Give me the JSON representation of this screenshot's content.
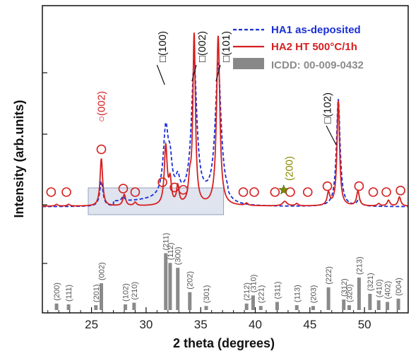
{
  "chart_data": {
    "type": "line",
    "xlabel": "2 theta (degrees)",
    "ylabel": "Intensity (arb.units)",
    "xlim": [
      20.5,
      54
    ],
    "x_ticks": [
      "25",
      "30",
      "35",
      "40",
      "45",
      "50"
    ],
    "x_tick_values": [
      25,
      30,
      35,
      40,
      45,
      50
    ],
    "grid": false,
    "legend_position": "top-right",
    "legend": [
      {
        "label": "HA1 as-deposited",
        "color": "#1a2fd6",
        "style": "dashed"
      },
      {
        "label": "HA2 HT 500°C/1h",
        "color": "#d62020",
        "style": "solid"
      },
      {
        "label": "ICDD: 00-009-0432",
        "color": "#888888",
        "style": "bar"
      }
    ],
    "series": [
      {
        "name": "HA1 as-deposited",
        "peaks": [
          {
            "x": 25.9,
            "h": 22,
            "w": 0.18
          },
          {
            "x": 27.9,
            "h": 4,
            "w": 0.15
          },
          {
            "x": 31.8,
            "h": 60,
            "w": 0.28
          },
          {
            "x": 32.2,
            "h": 25,
            "w": 0.22
          },
          {
            "x": 32.9,
            "h": 14,
            "w": 0.22
          },
          {
            "x": 34.4,
            "h": 120,
            "w": 0.3
          },
          {
            "x": 36.6,
            "h": 120,
            "w": 0.32
          },
          {
            "x": 47.6,
            "h": 95,
            "w": 0.2
          },
          {
            "x": 49.5,
            "h": 6,
            "w": 0.2
          }
        ]
      },
      {
        "name": "HA2 HT 500°C/1h",
        "peaks": [
          {
            "x": 21.8,
            "h": 1.5,
            "w": 0.15
          },
          {
            "x": 22.9,
            "h": 1.5,
            "w": 0.15
          },
          {
            "x": 25.9,
            "h": 42,
            "w": 0.14
          },
          {
            "x": 28.0,
            "h": 10,
            "w": 0.15
          },
          {
            "x": 29.0,
            "h": 3,
            "w": 0.15
          },
          {
            "x": 31.8,
            "h": 52,
            "w": 0.16
          },
          {
            "x": 32.2,
            "h": 20,
            "w": 0.14
          },
          {
            "x": 32.9,
            "h": 16,
            "w": 0.14
          },
          {
            "x": 34.0,
            "h": 18,
            "w": 0.15
          },
          {
            "x": 34.4,
            "h": 150,
            "w": 0.14
          },
          {
            "x": 36.6,
            "h": 150,
            "w": 0.18
          },
          {
            "x": 39.2,
            "h": 2,
            "w": 0.15
          },
          {
            "x": 42.7,
            "h": 4,
            "w": 0.25
          },
          {
            "x": 43.8,
            "h": 2,
            "w": 0.15
          },
          {
            "x": 46.7,
            "h": 11,
            "w": 0.15
          },
          {
            "x": 47.6,
            "h": 93,
            "w": 0.14
          },
          {
            "x": 49.4,
            "h": 13,
            "w": 0.15
          },
          {
            "x": 51.3,
            "h": 2,
            "w": 0.15
          },
          {
            "x": 52.2,
            "h": 5,
            "w": 0.15
          },
          {
            "x": 53.2,
            "h": 8,
            "w": 0.15
          }
        ]
      }
    ],
    "reference_bars": [
      {
        "x": 21.8,
        "label": "(200)",
        "h": 8
      },
      {
        "x": 22.9,
        "label": "(111)",
        "h": 7
      },
      {
        "x": 25.4,
        "label": "(201)",
        "h": 6
      },
      {
        "x": 25.9,
        "label": "(002)",
        "h": 33
      },
      {
        "x": 28.1,
        "label": "(102)",
        "h": 7
      },
      {
        "x": 28.9,
        "label": "(210)",
        "h": 9
      },
      {
        "x": 31.8,
        "label": "(211)",
        "h": 70
      },
      {
        "x": 32.2,
        "label": "(112)",
        "h": 58
      },
      {
        "x": 32.9,
        "label": "(300)",
        "h": 52
      },
      {
        "x": 34.0,
        "label": "(202)",
        "h": 22
      },
      {
        "x": 35.5,
        "label": "(301)",
        "h": 5
      },
      {
        "x": 39.2,
        "label": "(212)",
        "h": 8
      },
      {
        "x": 39.8,
        "label": "(310)",
        "h": 18
      },
      {
        "x": 40.5,
        "label": "(221)",
        "h": 5
      },
      {
        "x": 42.0,
        "label": "(311)",
        "h": 10
      },
      {
        "x": 43.8,
        "label": "(113)",
        "h": 6
      },
      {
        "x": 45.3,
        "label": "(203)",
        "h": 5
      },
      {
        "x": 46.7,
        "label": "(222)",
        "h": 28
      },
      {
        "x": 48.1,
        "label": "(312)",
        "h": 13
      },
      {
        "x": 48.6,
        "label": "(320)",
        "h": 6
      },
      {
        "x": 49.5,
        "label": "(213)",
        "h": 40
      },
      {
        "x": 50.5,
        "label": "(321)",
        "h": 20
      },
      {
        "x": 51.3,
        "label": "(410)",
        "h": 12
      },
      {
        "x": 52.1,
        "label": "(402)",
        "h": 10
      },
      {
        "x": 53.1,
        "label": "(004)",
        "h": 14
      }
    ],
    "annotations": [
      {
        "text": "○(002)",
        "x": 25.9,
        "color": "#d62020"
      },
      {
        "text": "□(100)",
        "x": 31.8,
        "color": "#111111"
      },
      {
        "text": "□(002)",
        "x": 34.4,
        "color": "#111111"
      },
      {
        "text": "□(101)",
        "x": 36.6,
        "color": "#111111"
      },
      {
        "text": "(200)",
        "x": 42.7,
        "color": "#8a8a00"
      },
      {
        "text": "□(102)",
        "x": 47.6,
        "color": "#111111"
      }
    ],
    "circle_markers_x": [
      21.3,
      22.7,
      25.9,
      27.9,
      29.0,
      31.5,
      32.6,
      33.4,
      38.9,
      39.9,
      41.8,
      43.2,
      44.8,
      46.6,
      49.5,
      50.8,
      52.0,
      53.3
    ],
    "star_marker_x": [
      42.6
    ]
  }
}
